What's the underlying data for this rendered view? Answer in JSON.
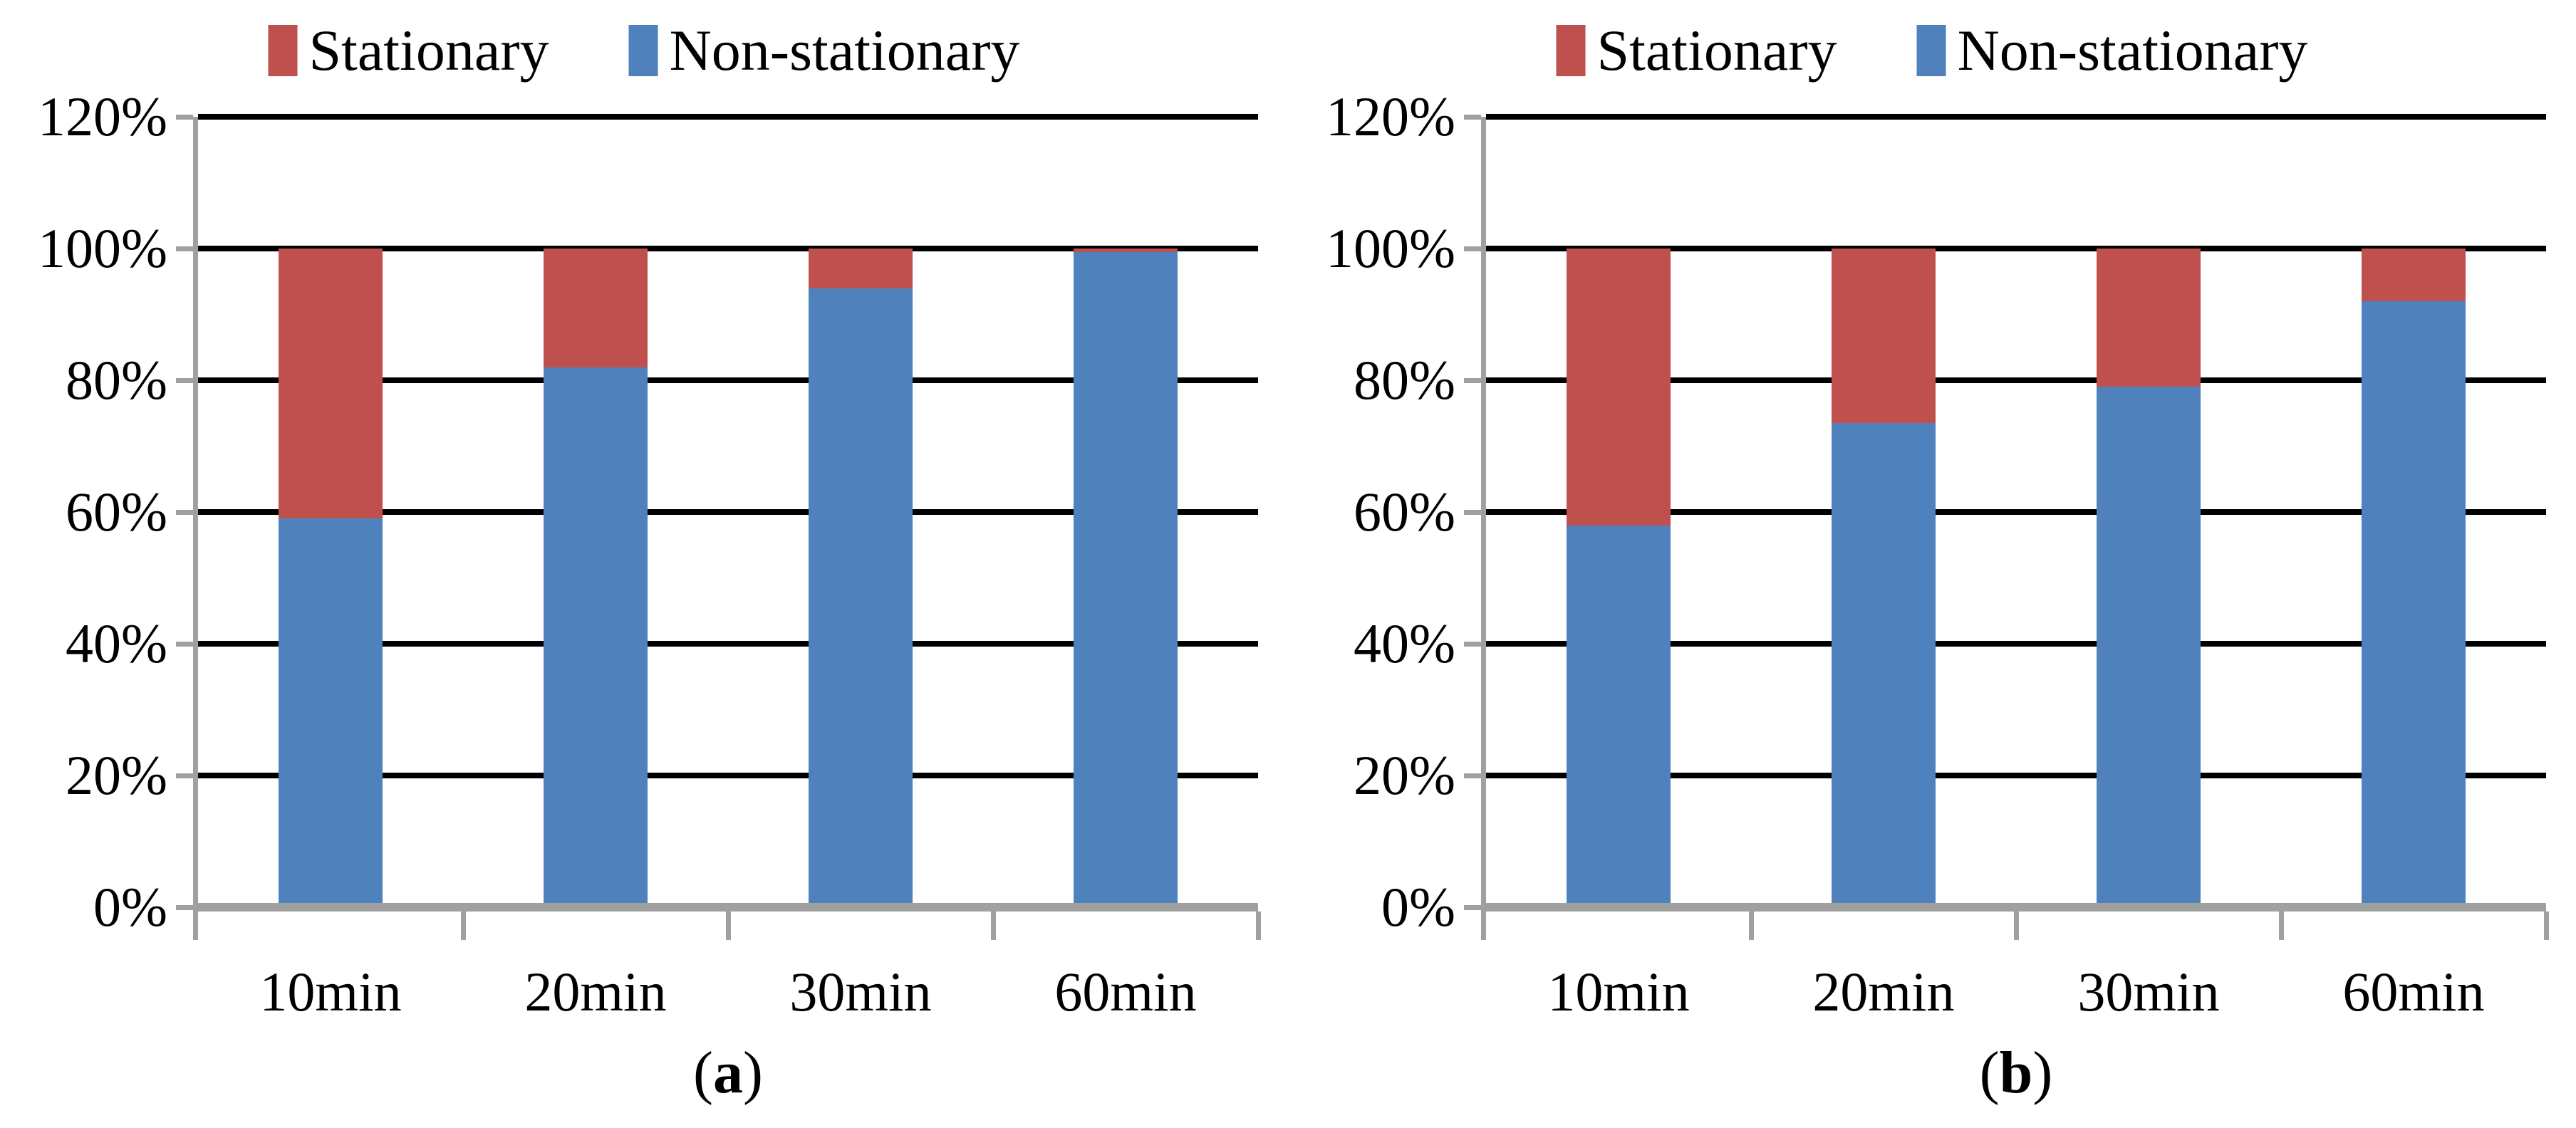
{
  "figure": {
    "background": "#ffffff",
    "text_color": "#000000"
  },
  "colors": {
    "stationary": "#c0504d",
    "non_stationary": "#4f81bd",
    "gridline": "#000000",
    "axis": "#a0a0a0"
  },
  "chart_data": [
    {
      "type": "bar",
      "stacked": true,
      "caption": "(a)",
      "categories": [
        "10min",
        "20min",
        "30min",
        "60min"
      ],
      "series": [
        {
          "name": "Non-stationary",
          "color": "#4f81bd",
          "values": [
            59,
            82,
            94,
            99.5
          ]
        },
        {
          "name": "Stationary",
          "color": "#c0504d",
          "values": [
            41,
            18,
            6,
            0.5
          ]
        }
      ],
      "legend": [
        {
          "label": "Stationary",
          "color": "#c0504d"
        },
        {
          "label": "Non-stationary",
          "color": "#4f81bd"
        }
      ],
      "legend_position": "top",
      "ylim": [
        0,
        120
      ],
      "ytick_step": 20,
      "ytick_labels": [
        "0%",
        "20%",
        "40%",
        "60%",
        "80%",
        "100%",
        "120%"
      ],
      "grid": "horizontal"
    },
    {
      "type": "bar",
      "stacked": true,
      "caption": "(b)",
      "categories": [
        "10min",
        "20min",
        "30min",
        "60min"
      ],
      "series": [
        {
          "name": "Non-stationary",
          "color": "#4f81bd",
          "values": [
            58,
            73.5,
            79,
            92
          ]
        },
        {
          "name": "Stationary",
          "color": "#c0504d",
          "values": [
            42,
            26.5,
            21,
            8
          ]
        }
      ],
      "legend": [
        {
          "label": "Stationary",
          "color": "#c0504d"
        },
        {
          "label": "Non-stationary",
          "color": "#4f81bd"
        }
      ],
      "legend_position": "top",
      "ylim": [
        0,
        120
      ],
      "ytick_step": 20,
      "ytick_labels": [
        "0%",
        "20%",
        "40%",
        "60%",
        "80%",
        "100%",
        "120%"
      ],
      "grid": "horizontal"
    }
  ]
}
